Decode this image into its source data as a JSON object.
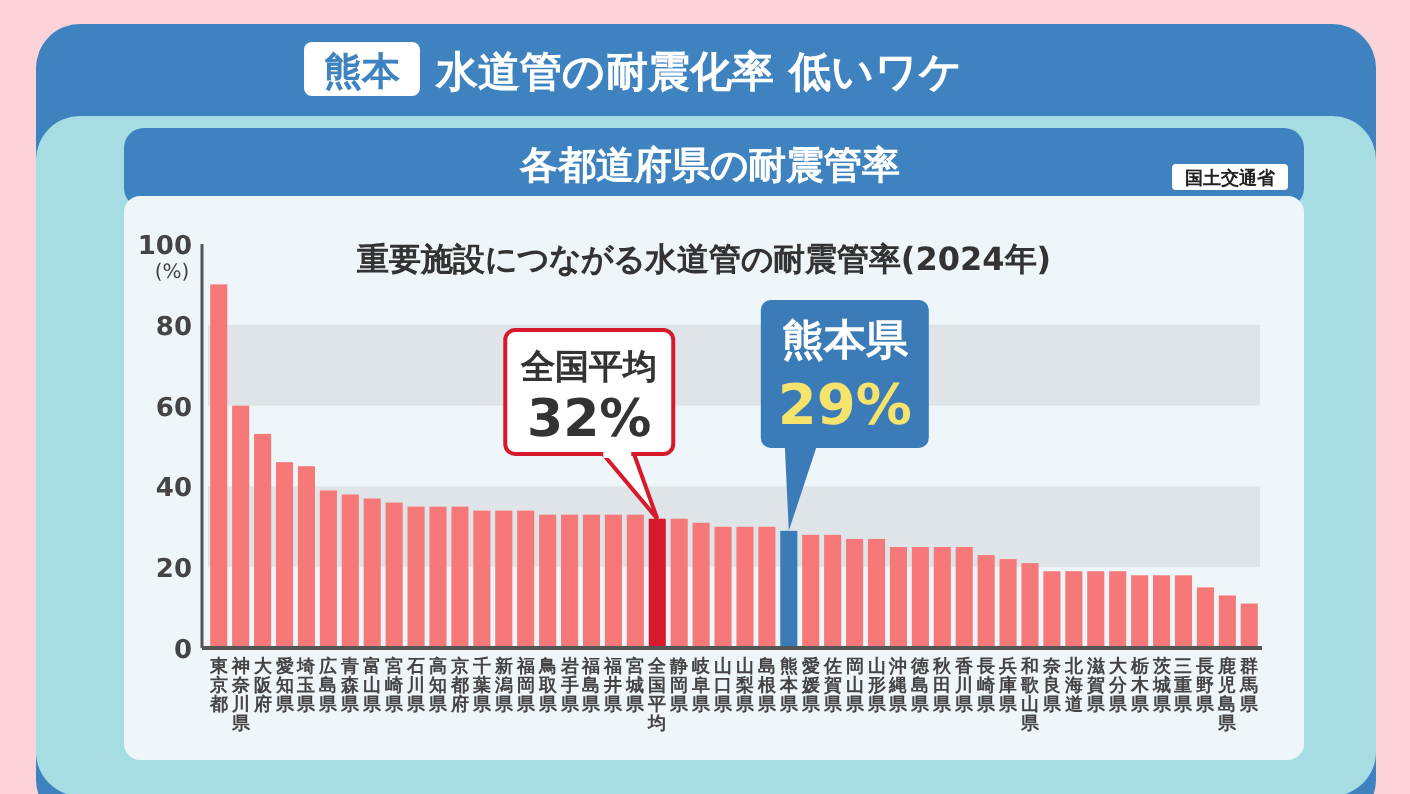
{
  "chart_data": {
    "type": "bar",
    "title": "熊本 水道管の耐震化率 低いワケ",
    "subtitle": "各都道府県の耐震管率",
    "ylabel": "(%)",
    "annotations": [
      "重要施設につながる水道管の耐震管率(2024年)",
      "国土交通省",
      {
        "text": "全国平均 32%",
        "x": "全国平均",
        "y": 32
      },
      {
        "text": "熊本県 29%",
        "x": "熊本県",
        "y": 29
      }
    ],
    "categories": [
      "東京都",
      "神奈川県",
      "大阪府",
      "愛知県",
      "埼玉県",
      "広島県",
      "青森県",
      "富山県",
      "宮崎県",
      "石川県",
      "高知県",
      "京都府",
      "千葉県",
      "新潟県",
      "福岡県",
      "鳥取県",
      "岩手県",
      "福島県",
      "福井県",
      "宮城県",
      "全国平均",
      "静岡県",
      "岐阜県",
      "山口県",
      "山梨県",
      "島根県",
      "熊本県",
      "愛媛県",
      "佐賀県",
      "岡山県",
      "山形県",
      "沖縄県",
      "徳島県",
      "秋田県",
      "香川県",
      "長崎県",
      "兵庫県",
      "和歌山県",
      "奈良県",
      "北海道",
      "滋賀県",
      "大分県",
      "栃木県",
      "茨城県",
      "三重県",
      "長野県",
      "鹿児島県",
      "群馬県"
    ],
    "values": [
      90,
      60,
      53,
      46,
      45,
      39,
      38,
      37,
      36,
      35,
      35,
      35,
      34,
      34,
      34,
      33,
      33,
      33,
      33,
      33,
      32,
      32,
      31,
      30,
      30,
      30,
      29,
      28,
      28,
      27,
      27,
      25,
      25,
      25,
      25,
      23,
      22,
      21,
      19,
      19,
      19,
      19,
      18,
      18,
      18,
      15,
      13,
      11
    ],
    "colors": [
      "#f77878",
      "#f77878",
      "#f77878",
      "#f77878",
      "#f77878",
      "#f77878",
      "#f77878",
      "#f77878",
      "#f77878",
      "#f77878",
      "#f77878",
      "#f77878",
      "#f77878",
      "#f77878",
      "#f77878",
      "#f77878",
      "#f77878",
      "#f77878",
      "#f77878",
      "#f77878",
      "#d7192c",
      "#f77878",
      "#f77878",
      "#f77878",
      "#f77878",
      "#f77878",
      "#3a7bb8",
      "#f77878",
      "#f77878",
      "#f77878",
      "#f77878",
      "#f77878",
      "#f77878",
      "#f77878",
      "#f77878",
      "#f77878",
      "#f77878",
      "#f77878",
      "#f77878",
      "#f77878",
      "#f77878",
      "#f77878",
      "#f77878",
      "#f77878",
      "#f77878",
      "#f77878",
      "#f77878",
      "#f77878"
    ],
    "ylim": [
      0,
      100
    ],
    "yticks": [
      0,
      20,
      40,
      60,
      80,
      100
    ],
    "bands": [
      {
        "axis": "y",
        "from": 20,
        "to": 40,
        "color": "#dfe4e8"
      },
      {
        "axis": "y",
        "from": 60,
        "to": 80,
        "color": "#dfe4e8"
      }
    ]
  }
}
